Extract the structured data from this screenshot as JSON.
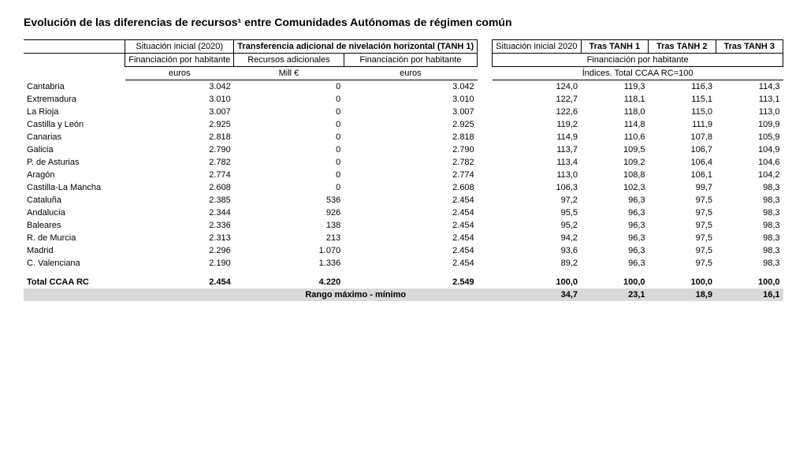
{
  "title": "Evolución de las diferencias de recursos¹ entre Comunidades Autónomas de régimen común",
  "headers": {
    "situacion_inicial_2020": "Situación inicial (2020)",
    "tanh1_group": "Transferencia adicional de nivelación horizontal (TANH 1)",
    "situacion_inicial_2020_b": "Situación inicial 2020",
    "tras_tanh1": "Tras TANH 1",
    "tras_tanh2": "Tras TANH 2",
    "tras_tanh3": "Tras TANH 3",
    "fin_por_hab": "Financiación por habitante",
    "rec_adic": "Recursos adicionales",
    "fin_por_hab2": "Financiación por habitante",
    "fin_por_hab_group": "Financiación por habitante",
    "euros": "euros",
    "mill": "Mill €",
    "indices": "Índices. Total CCAA RC=100"
  },
  "columns": {
    "widths": [
      "150",
      "88",
      "88",
      "100",
      "10",
      "95",
      "95",
      "95",
      "95"
    ]
  },
  "rows": [
    {
      "name": "Cantabria",
      "c1": "3.042",
      "c2": "0",
      "c3": "3.042",
      "c4": "124,0",
      "c5": "119,3",
      "c6": "116,3",
      "c7": "114,3"
    },
    {
      "name": "Extremadura",
      "c1": "3.010",
      "c2": "0",
      "c3": "3.010",
      "c4": "122,7",
      "c5": "118,1",
      "c6": "115,1",
      "c7": "113,1"
    },
    {
      "name": "La Rioja",
      "c1": "3.007",
      "c2": "0",
      "c3": "3.007",
      "c4": "122,6",
      "c5": "118,0",
      "c6": "115,0",
      "c7": "113,0"
    },
    {
      "name": "Castilla y León",
      "c1": "2.925",
      "c2": "0",
      "c3": "2.925",
      "c4": "119,2",
      "c5": "114,8",
      "c6": "111,9",
      "c7": "109,9"
    },
    {
      "name": "Canarias",
      "c1": "2.818",
      "c2": "0",
      "c3": "2.818",
      "c4": "114,9",
      "c5": "110,6",
      "c6": "107,8",
      "c7": "105,9"
    },
    {
      "name": "Galicia",
      "c1": "2.790",
      "c2": "0",
      "c3": "2.790",
      "c4": "113,7",
      "c5": "109,5",
      "c6": "106,7",
      "c7": "104,9"
    },
    {
      "name": "P. de Asturias",
      "c1": "2.782",
      "c2": "0",
      "c3": "2.782",
      "c4": "113,4",
      "c5": "109,2",
      "c6": "106,4",
      "c7": "104,6"
    },
    {
      "name": "Aragón",
      "c1": "2.774",
      "c2": "0",
      "c3": "2.774",
      "c4": "113,0",
      "c5": "108,8",
      "c6": "106,1",
      "c7": "104,2"
    },
    {
      "name": "Castilla-La Mancha",
      "c1": "2.608",
      "c2": "0",
      "c3": "2.608",
      "c4": "106,3",
      "c5": "102,3",
      "c6": "99,7",
      "c7": "98,3"
    },
    {
      "name": "Cataluña",
      "c1": "2.385",
      "c2": "536",
      "c3": "2.454",
      "c4": "97,2",
      "c5": "96,3",
      "c6": "97,5",
      "c7": "98,3"
    },
    {
      "name": "Andalucía",
      "c1": "2.344",
      "c2": "926",
      "c3": "2.454",
      "c4": "95,5",
      "c5": "96,3",
      "c6": "97,5",
      "c7": "98,3"
    },
    {
      "name": "Baleares",
      "c1": "2.336",
      "c2": "138",
      "c3": "2.454",
      "c4": "95,2",
      "c5": "96,3",
      "c6": "97,5",
      "c7": "98,3"
    },
    {
      "name": "R. de Murcia",
      "c1": "2.313",
      "c2": "213",
      "c3": "2.454",
      "c4": "94,2",
      "c5": "96,3",
      "c6": "97,5",
      "c7": "98,3"
    },
    {
      "name": "Madrid",
      "c1": "2.296",
      "c2": "1.070",
      "c3": "2.454",
      "c4": "93,6",
      "c5": "96,3",
      "c6": "97,5",
      "c7": "98,3"
    },
    {
      "name": "C. Valenciana",
      "c1": "2.190",
      "c2": "1.336",
      "c3": "2.454",
      "c4": "89,2",
      "c5": "96,3",
      "c6": "97,5",
      "c7": "98,3"
    }
  ],
  "total": {
    "name": "Total CCAA RC",
    "c1": "2.454",
    "c2": "4.220",
    "c3": "2.549",
    "c4": "100,0",
    "c5": "100,0",
    "c6": "100,0",
    "c7": "100,0"
  },
  "range": {
    "label": "Rango máximo - mínimo",
    "c4": "34,7",
    "c5": "23,1",
    "c6": "18,9",
    "c7": "16,1"
  }
}
